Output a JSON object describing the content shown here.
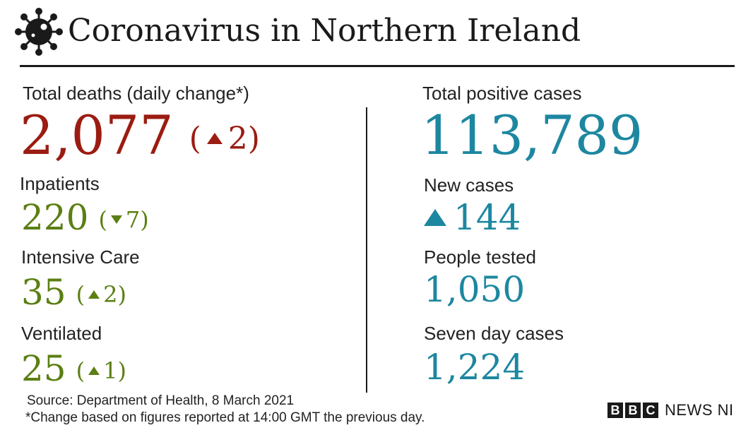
{
  "header": {
    "title": "Coronavirus in Northern Ireland",
    "icon": "virus-icon"
  },
  "left": {
    "deaths": {
      "label": "Total deaths (daily change*)",
      "value": "2,077",
      "change": "2",
      "direction": "up",
      "color": "#9b1c12"
    },
    "inpatients": {
      "label": "Inpatients",
      "value": "220",
      "change": "7",
      "direction": "down",
      "color": "#5b7f13"
    },
    "intensive": {
      "label": "Intensive Care",
      "value": "35",
      "change": "2",
      "direction": "up",
      "color": "#5b7f13"
    },
    "ventilated": {
      "label": "Ventilated",
      "value": "25",
      "change": "1",
      "direction": "up",
      "color": "#5b7f13"
    }
  },
  "right": {
    "positive": {
      "label": "Total positive cases",
      "value": "113,789",
      "color": "#1d87a0"
    },
    "new_cases": {
      "label": "New cases",
      "value": "144",
      "direction": "up"
    },
    "tested": {
      "label": "People tested",
      "value": "1,050"
    },
    "seven_day": {
      "label": "Seven day cases",
      "value": "1,224"
    }
  },
  "footer": {
    "source": "Source: Department of Health, 8 March 2021",
    "note": "*Change based on figures reported at 14:00 GMT the previous day.",
    "logo": {
      "letters": [
        "B",
        "B",
        "C"
      ],
      "text": "NEWS NI"
    }
  }
}
